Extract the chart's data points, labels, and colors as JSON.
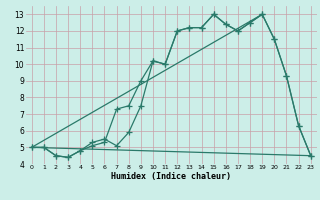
{
  "line1_x": [
    0,
    1,
    2,
    3,
    4,
    5,
    6,
    7,
    8,
    9,
    10,
    11,
    12,
    13,
    14,
    15,
    16,
    17,
    18,
    19,
    20,
    21,
    22,
    23
  ],
  "line1_y": [
    5.0,
    5.0,
    4.5,
    4.4,
    4.8,
    5.3,
    5.5,
    5.1,
    5.9,
    7.5,
    10.2,
    10.0,
    12.0,
    12.2,
    12.2,
    13.0,
    12.4,
    12.0,
    12.5,
    13.0,
    11.5,
    9.3,
    6.3,
    4.5
  ],
  "line2_x": [
    0,
    1,
    2,
    3,
    4,
    5,
    6,
    7,
    8,
    9,
    10,
    11,
    12,
    13,
    14,
    15,
    16,
    17,
    18,
    19,
    20,
    21,
    22,
    23
  ],
  "line2_y": [
    5.0,
    5.0,
    4.5,
    4.4,
    4.8,
    5.1,
    5.3,
    7.3,
    7.5,
    9.0,
    10.2,
    10.0,
    12.0,
    12.2,
    12.2,
    13.0,
    12.4,
    12.0,
    12.5,
    13.0,
    11.5,
    9.3,
    6.3,
    4.5
  ],
  "line3_x": [
    0,
    23
  ],
  "line3_y": [
    5.0,
    4.5
  ],
  "line4_x": [
    0,
    19
  ],
  "line4_y": [
    5.0,
    13.0
  ],
  "teal_color": "#2a7a6a",
  "bg_color": "#cceee8",
  "grid_color": "#c8a0a8",
  "xlabel": "Humidex (Indice chaleur)",
  "xlim": [
    -0.5,
    23.5
  ],
  "ylim": [
    4,
    13.5
  ],
  "xticks": [
    0,
    1,
    2,
    3,
    4,
    5,
    6,
    7,
    8,
    9,
    10,
    11,
    12,
    13,
    14,
    15,
    16,
    17,
    18,
    19,
    20,
    21,
    22,
    23
  ],
  "yticks": [
    4,
    5,
    6,
    7,
    8,
    9,
    10,
    11,
    12,
    13
  ]
}
